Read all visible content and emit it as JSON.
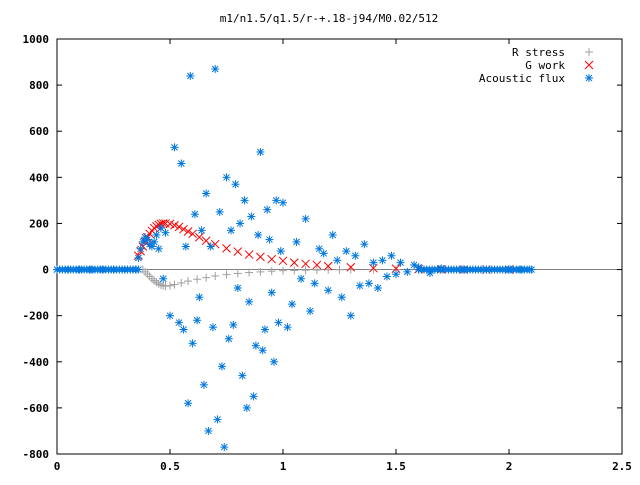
{
  "chart_data": {
    "type": "scatter",
    "title": "m1/n1.5/q1.5/r-+.18-j94/M0.02/512",
    "xlabel": "",
    "ylabel": "",
    "xlim": [
      0,
      2.5
    ],
    "ylim": [
      -800,
      1000
    ],
    "x_ticks": [
      "0",
      "0.5",
      "1",
      "1.5",
      "2",
      "2.5"
    ],
    "y_ticks": [
      "1000",
      "800",
      "600",
      "400",
      "200",
      "0",
      "-200",
      "-400",
      "-600",
      "-800"
    ],
    "grid": false,
    "legend_position": "top-right",
    "series": [
      {
        "name": "R stress",
        "marker": "plus",
        "color": "#a0a0a0",
        "x": [
          0.38,
          0.39,
          0.4,
          0.41,
          0.42,
          0.43,
          0.44,
          0.45,
          0.46,
          0.47,
          0.48,
          0.5,
          0.52,
          0.55,
          0.58,
          0.62,
          0.66,
          0.7,
          0.75,
          0.8,
          0.85,
          0.9,
          0.95,
          1.0,
          1.05,
          1.1,
          1.15,
          1.2,
          1.25,
          1.3,
          1.4,
          1.5,
          1.6,
          1.7,
          1.8,
          1.9,
          2.0
        ],
        "y": [
          0,
          -10,
          -20,
          -30,
          -40,
          -48,
          -55,
          -62,
          -67,
          -70,
          -72,
          -70,
          -65,
          -58,
          -50,
          -42,
          -35,
          -28,
          -22,
          -17,
          -13,
          -10,
          -7,
          -5,
          -4,
          -3,
          -2,
          -1,
          -1,
          0,
          0,
          0,
          0,
          0,
          0,
          0,
          0
        ]
      },
      {
        "name": "G work",
        "marker": "cross",
        "color": "#ff0000",
        "x": [
          0.36,
          0.37,
          0.38,
          0.39,
          0.4,
          0.41,
          0.42,
          0.43,
          0.44,
          0.45,
          0.46,
          0.47,
          0.48,
          0.5,
          0.52,
          0.54,
          0.56,
          0.58,
          0.6,
          0.63,
          0.66,
          0.7,
          0.75,
          0.8,
          0.85,
          0.9,
          0.95,
          1.0,
          1.05,
          1.1,
          1.15,
          1.2,
          1.3,
          1.4,
          1.5,
          1.6,
          1.7,
          1.8,
          1.9,
          2.0
        ],
        "y": [
          60,
          80,
          100,
          120,
          140,
          155,
          168,
          180,
          188,
          194,
          198,
          200,
          200,
          198,
          192,
          185,
          175,
          165,
          155,
          140,
          125,
          110,
          92,
          78,
          65,
          55,
          45,
          38,
          30,
          25,
          20,
          15,
          10,
          6,
          4,
          2,
          1,
          0,
          0,
          0
        ]
      },
      {
        "name": "Acoustic flux",
        "marker": "star",
        "color": "#0077dd",
        "x": [
          0.0,
          0.05,
          0.1,
          0.15,
          0.2,
          0.25,
          0.3,
          0.35,
          0.36,
          0.37,
          0.38,
          0.39,
          0.4,
          0.41,
          0.42,
          0.43,
          0.44,
          0.45,
          0.46,
          0.47,
          0.48,
          0.5,
          0.52,
          0.54,
          0.55,
          0.56,
          0.57,
          0.58,
          0.59,
          0.6,
          0.61,
          0.62,
          0.63,
          0.64,
          0.65,
          0.66,
          0.67,
          0.68,
          0.69,
          0.7,
          0.71,
          0.72,
          0.73,
          0.74,
          0.75,
          0.76,
          0.77,
          0.78,
          0.79,
          0.8,
          0.81,
          0.82,
          0.83,
          0.84,
          0.85,
          0.86,
          0.87,
          0.88,
          0.89,
          0.9,
          0.91,
          0.92,
          0.93,
          0.94,
          0.95,
          0.96,
          0.97,
          0.98,
          0.99,
          1.0,
          1.02,
          1.04,
          1.06,
          1.08,
          1.1,
          1.12,
          1.14,
          1.16,
          1.18,
          1.2,
          1.22,
          1.24,
          1.26,
          1.28,
          1.3,
          1.32,
          1.34,
          1.36,
          1.38,
          1.4,
          1.42,
          1.44,
          1.46,
          1.48,
          1.5,
          1.52,
          1.55,
          1.58,
          1.6,
          1.65,
          1.7,
          1.8,
          1.9,
          2.0,
          2.05,
          2.1
        ],
        "y": [
          0,
          0,
          0,
          0,
          0,
          0,
          0,
          0,
          50,
          90,
          120,
          140,
          130,
          110,
          100,
          120,
          150,
          90,
          180,
          -40,
          160,
          -200,
          530,
          -230,
          460,
          -260,
          100,
          -580,
          840,
          -320,
          240,
          -220,
          -120,
          170,
          -500,
          330,
          -700,
          100,
          -250,
          870,
          -650,
          250,
          -420,
          -770,
          400,
          -300,
          170,
          -240,
          370,
          -80,
          200,
          -460,
          300,
          -600,
          -140,
          230,
          -550,
          -330,
          150,
          510,
          -350,
          -260,
          260,
          130,
          -100,
          -400,
          300,
          -230,
          80,
          290,
          -250,
          -150,
          120,
          -40,
          220,
          -180,
          -60,
          90,
          70,
          -90,
          150,
          40,
          -120,
          80,
          -200,
          60,
          -70,
          110,
          -60,
          30,
          -80,
          40,
          -30,
          60,
          -20,
          30,
          -10,
          20,
          10,
          -15,
          5,
          0,
          0,
          0,
          0,
          0
        ]
      }
    ]
  }
}
